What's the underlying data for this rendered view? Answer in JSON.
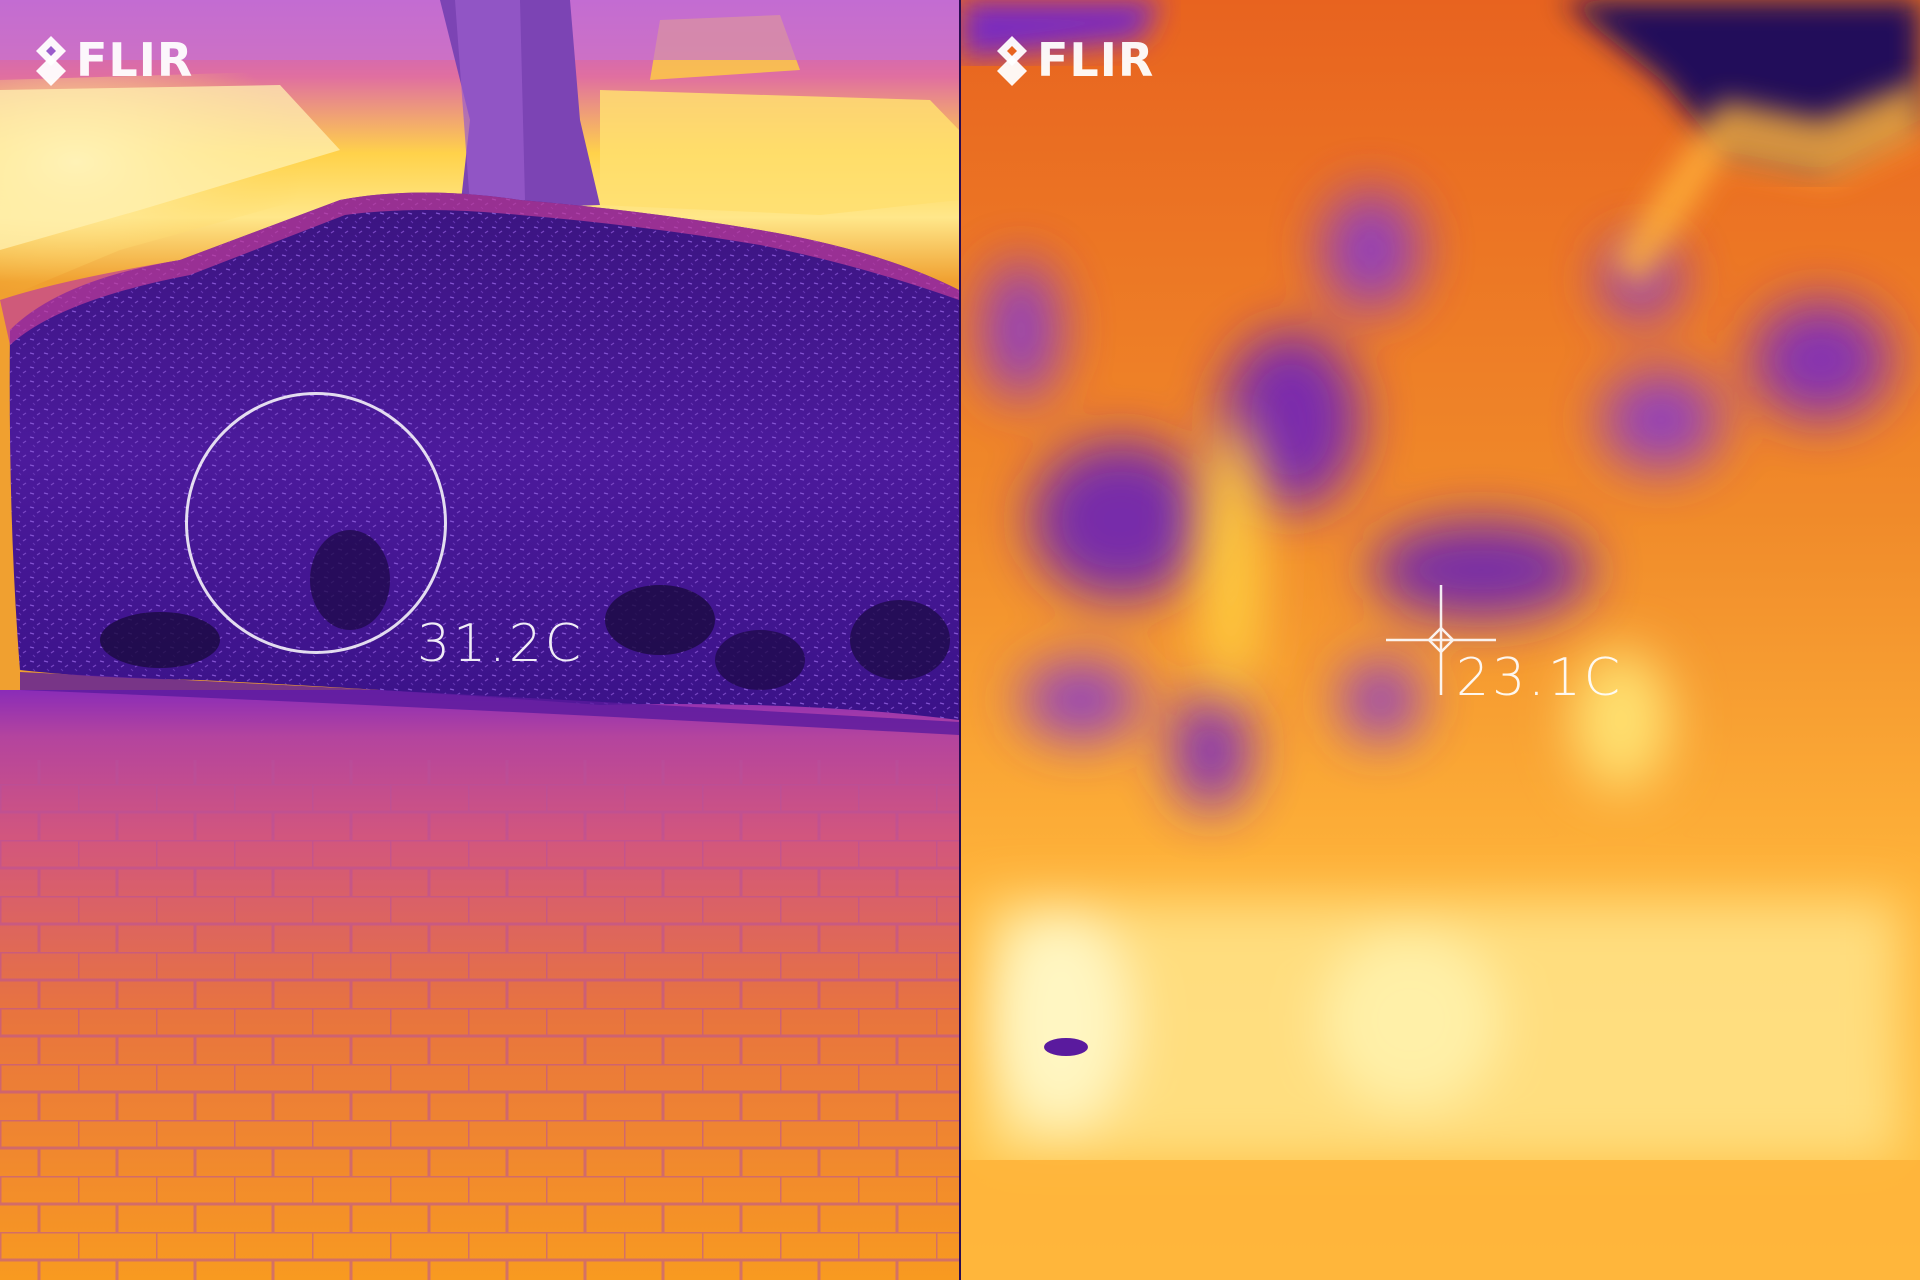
{
  "left_panel": {
    "logo_text": "FLIR",
    "measurement_tool": "spot-circle",
    "temperature": "31.2C",
    "palette": {
      "hot": "#fff3b0",
      "warm": "#ff9f2e",
      "mid": "#d2397a",
      "cool": "#5a1a9e",
      "cold": "#1a0a4a"
    }
  },
  "right_panel": {
    "logo_text": "FLIR",
    "measurement_tool": "crosshair",
    "temperature": "23.1C",
    "palette": {
      "hot": "#fff6c2",
      "warm": "#ffb43a",
      "mid": "#e8631f",
      "cool": "#7a2cc0",
      "cold": "#2a0c5c"
    }
  },
  "icons": {
    "logo": "flir-diamond-icon",
    "spot": "spot-meter-circle-icon",
    "crosshair": "crosshair-icon"
  }
}
